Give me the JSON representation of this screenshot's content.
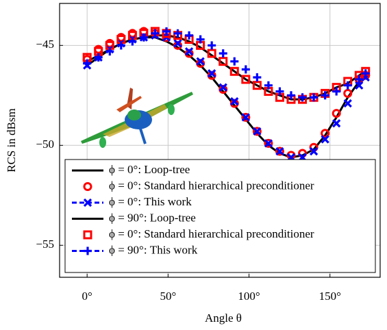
{
  "chart_data": {
    "type": "line",
    "xlabel": "Angle θ",
    "ylabel": "RCS in dBsm",
    "x": [
      0,
      7,
      14,
      21,
      28,
      35,
      42,
      49,
      56,
      63,
      70,
      77,
      84,
      91,
      98,
      105,
      112,
      119,
      126,
      133,
      140,
      147,
      154,
      161,
      168,
      172
    ],
    "xlim": [
      -17,
      181
    ],
    "ylim": [
      -56.6,
      -42.9
    ],
    "xticks": [
      {
        "value": 0,
        "label": "0°"
      },
      {
        "value": 50,
        "label": "50°"
      },
      {
        "value": 100,
        "label": "100°"
      },
      {
        "value": 150,
        "label": "150°"
      }
    ],
    "yticks": [
      {
        "value": -55,
        "label": "−55"
      },
      {
        "value": -50,
        "label": "−50"
      },
      {
        "value": -45,
        "label": "−45"
      }
    ],
    "grid": true,
    "legend": "lower left",
    "series": [
      {
        "name": "ϕ = 0°: Loop-tree",
        "type": "line",
        "color": "#000000",
        "values": [
          -46.0,
          -45.6,
          -45.2,
          -44.9,
          -44.7,
          -44.6,
          -44.6,
          -44.8,
          -45.1,
          -45.5,
          -46.0,
          -46.6,
          -47.3,
          -48.0,
          -48.7,
          -49.4,
          -50.0,
          -50.4,
          -50.6,
          -50.5,
          -50.2,
          -49.5,
          -48.6,
          -47.6,
          -46.8,
          -46.5
        ]
      },
      {
        "name": "ϕ = 0°: Standard hierarchical preconditioner",
        "type": "scatter",
        "marker": "circle",
        "color": "#ff0000",
        "values": [
          -45.7,
          -45.2,
          -44.9,
          -44.6,
          -44.4,
          -44.3,
          -44.4,
          -44.6,
          -45.0,
          -45.4,
          -45.9,
          -46.5,
          -47.2,
          -47.9,
          -48.6,
          -49.3,
          -49.9,
          -50.3,
          -50.5,
          -50.4,
          -50.1,
          -49.4,
          -48.4,
          -47.4,
          -46.7,
          -46.5
        ]
      },
      {
        "name": "ϕ = 0°: This work",
        "type": "scatter",
        "marker": "x",
        "color": "#0000ff",
        "dash": true,
        "values": [
          -46.0,
          -45.6,
          -45.2,
          -44.9,
          -44.7,
          -44.6,
          -44.5,
          -44.6,
          -44.9,
          -45.3,
          -45.8,
          -46.4,
          -47.1,
          -47.8,
          -48.6,
          -49.3,
          -49.9,
          -50.3,
          -50.6,
          -50.6,
          -50.3,
          -49.7,
          -48.9,
          -47.9,
          -47.0,
          -46.6
        ]
      },
      {
        "name": "ϕ = 90°: Loop-tree",
        "type": "line",
        "color": "#000000",
        "values": [
          -45.8,
          -45.5,
          -45.2,
          -44.9,
          -44.7,
          -44.6,
          -44.5,
          -44.5,
          -44.6,
          -44.8,
          -45.1,
          -45.5,
          -45.9,
          -46.3,
          -46.7,
          -47.0,
          -47.3,
          -47.5,
          -47.7,
          -47.7,
          -47.6,
          -47.4,
          -47.1,
          -46.9,
          -46.5,
          -46.3
        ]
      },
      {
        "name": "ϕ = 0°: Standard hierarchical preconditioner",
        "type": "scatter",
        "marker": "square",
        "color": "#ff0000",
        "values": [
          -45.6,
          -45.3,
          -45.0,
          -44.7,
          -44.5,
          -44.4,
          -44.3,
          -44.4,
          -44.5,
          -44.7,
          -45.0,
          -45.4,
          -45.8,
          -46.3,
          -46.7,
          -47.0,
          -47.3,
          -47.6,
          -47.7,
          -47.7,
          -47.6,
          -47.4,
          -47.1,
          -46.8,
          -46.5,
          -46.3
        ]
      },
      {
        "name": "ϕ = 90°: This work",
        "type": "scatter",
        "marker": "plus",
        "color": "#0000ff",
        "dash": true,
        "values": [
          -45.9,
          -45.6,
          -45.3,
          -45.0,
          -44.8,
          -44.6,
          -44.4,
          -44.3,
          -44.4,
          -44.5,
          -44.7,
          -45.0,
          -45.4,
          -45.8,
          -46.2,
          -46.6,
          -47.0,
          -47.3,
          -47.5,
          -47.6,
          -47.6,
          -47.5,
          -47.3,
          -47.0,
          -46.7,
          -46.4
        ]
      }
    ]
  }
}
